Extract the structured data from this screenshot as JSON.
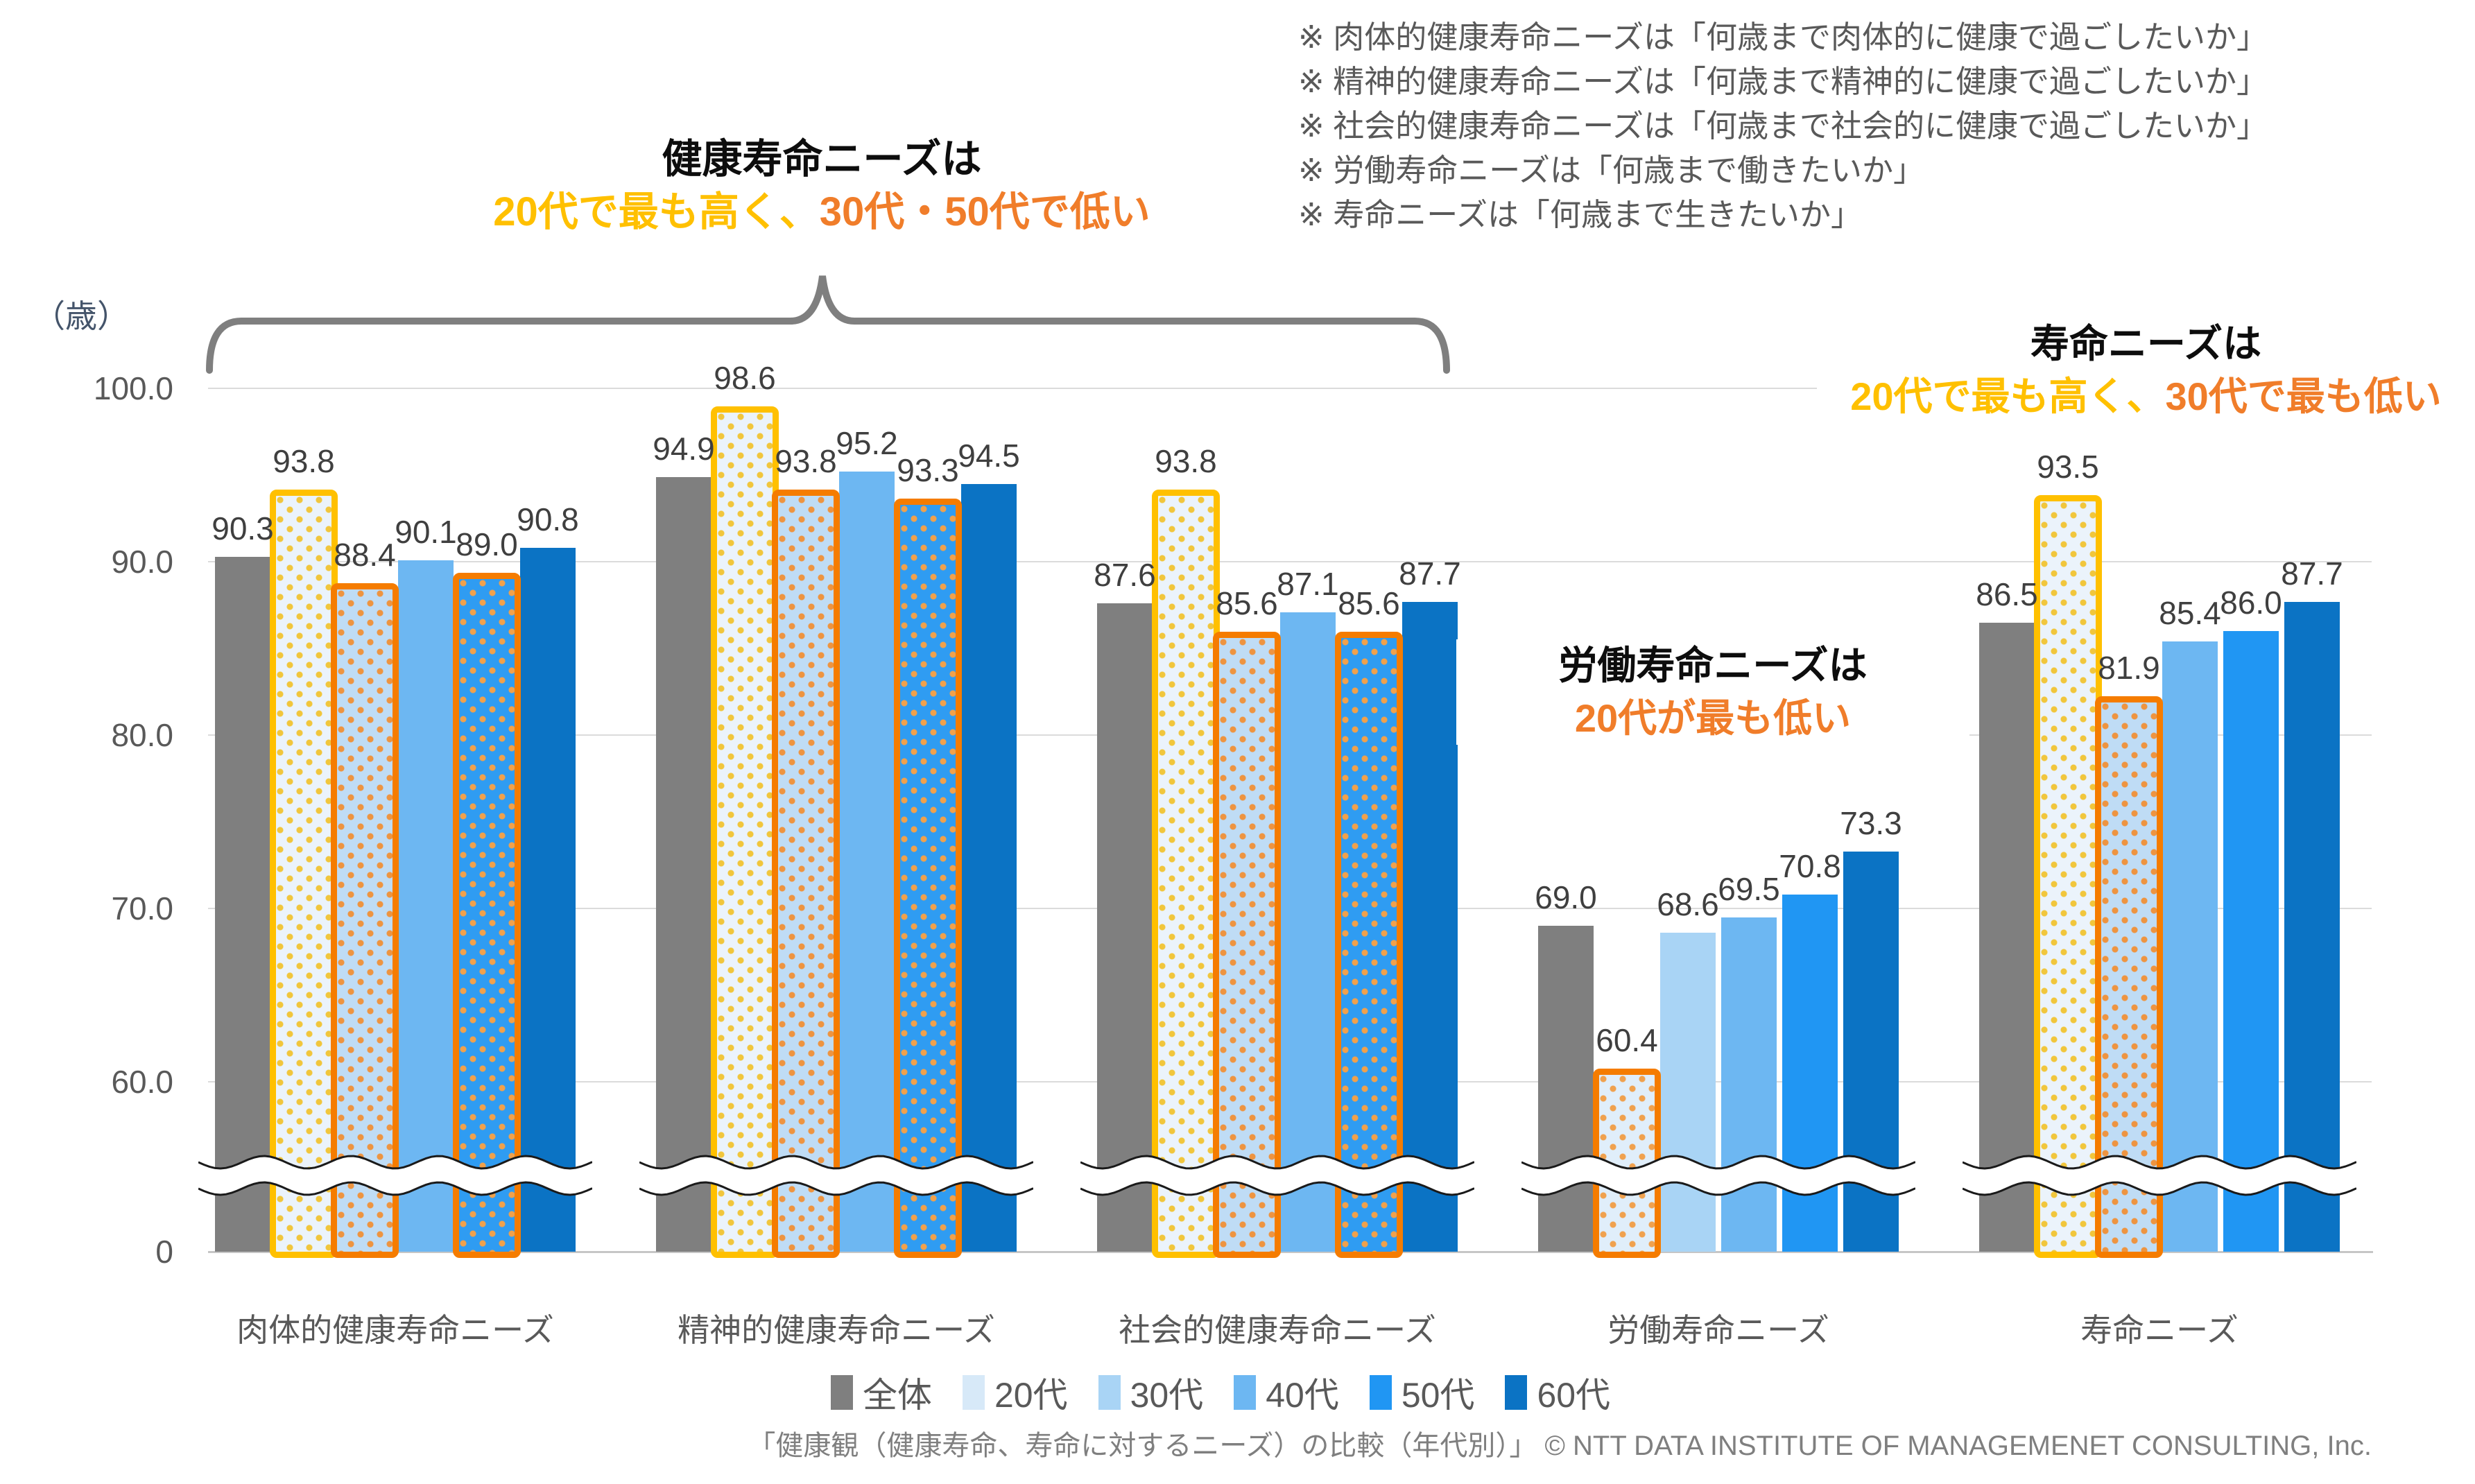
{
  "notes": {
    "items": [
      "※ 肉体的健康寿命ニーズは「何歳まで肉体的に健康で過ごしたいか」",
      "※ 精神的健康寿命ニーズは「何歳まで精神的に健康で過ごしたいか」",
      "※ 社会的健康寿命ニーズは「何歳まで社会的に健康で過ごしたいか」",
      "※ 労働寿命ニーズは「何歳まで働きたいか」",
      "※ 寿命ニーズは「何歳まで生きたいか」"
    ]
  },
  "annotations": {
    "main": {
      "line1": "健康寿命ニーズは",
      "line2_yellow": "20代で最も高く、",
      "line2_orange": "30代・50代で低い"
    },
    "labor": {
      "line1": "労働寿命ニーズは",
      "line2_orange": "20代が最も低い"
    },
    "lifespan": {
      "line1": "寿命ニーズは",
      "line2_yellow": "20代で最も高く、",
      "line2_orange": "30代で最も低い"
    }
  },
  "axis": {
    "unit_label": "（歳）"
  },
  "legend": {
    "items": [
      {
        "label": "全体",
        "color": "#7F7F7F"
      },
      {
        "label": "20代",
        "color": "#D7E9F8"
      },
      {
        "label": "30代",
        "color": "#A9D4F5"
      },
      {
        "label": "40代",
        "color": "#6DB7F2"
      },
      {
        "label": "50代",
        "color": "#2096F3"
      },
      {
        "label": "60代",
        "color": "#0B73C4"
      }
    ]
  },
  "caption": "「健康観（健康寿命、寿命に対するニーズ）の比較（年代別）」 © NTT DATA INSTITUTE OF MANAGEMENET CONSULTING, Inc.",
  "colors": {
    "accent_yellow": "#FFC000",
    "accent_orange_text": "#F07D2A",
    "highlight_border_yellow": "#FFC000",
    "highlight_border_orange": "#F57C00",
    "gridline": "#DBDBDB",
    "note_text": "#595959",
    "value_text": "#3F3F3F"
  },
  "chart_data": {
    "type": "bar",
    "title": "健康寿命ニーズは20代で最も高く、30代・50代で低い",
    "ylabel": "（歳）",
    "categories": [
      "肉体的健康寿命ニーズ",
      "精神的健康寿命ニーズ",
      "社会的健康寿命ニーズ",
      "労働寿命ニーズ",
      "寿命ニーズ"
    ],
    "series": [
      {
        "name": "全体",
        "color": "#7F7F7F",
        "values": [
          90.3,
          94.9,
          87.6,
          69.0,
          86.5
        ]
      },
      {
        "name": "20代",
        "color": "#D7E9F8",
        "values": [
          93.8,
          98.6,
          93.8,
          60.4,
          93.5
        ]
      },
      {
        "name": "30代",
        "color": "#A9D4F5",
        "values": [
          88.4,
          93.8,
          85.6,
          68.6,
          81.9
        ]
      },
      {
        "name": "40代",
        "color": "#6DB7F2",
        "values": [
          90.1,
          95.2,
          87.1,
          69.5,
          85.4
        ]
      },
      {
        "name": "50代",
        "color": "#2096F3",
        "values": [
          89.0,
          93.3,
          85.6,
          70.8,
          86.0
        ]
      },
      {
        "name": "60代",
        "color": "#0B73C4",
        "values": [
          90.8,
          94.5,
          87.7,
          73.3,
          87.7
        ]
      }
    ],
    "highlights": [
      {
        "group": 0,
        "series": 1,
        "style": "yellow"
      },
      {
        "group": 0,
        "series": 2,
        "style": "orange"
      },
      {
        "group": 0,
        "series": 4,
        "style": "orange"
      },
      {
        "group": 1,
        "series": 1,
        "style": "yellow"
      },
      {
        "group": 1,
        "series": 2,
        "style": "orange"
      },
      {
        "group": 1,
        "series": 4,
        "style": "orange"
      },
      {
        "group": 2,
        "series": 1,
        "style": "yellow"
      },
      {
        "group": 2,
        "series": 2,
        "style": "orange"
      },
      {
        "group": 2,
        "series": 4,
        "style": "orange"
      },
      {
        "group": 3,
        "series": 1,
        "style": "orange"
      },
      {
        "group": 4,
        "series": 1,
        "style": "yellow"
      },
      {
        "group": 4,
        "series": 2,
        "style": "orange"
      }
    ],
    "highlight_colors": {
      "yellow": "#FFC000",
      "orange": "#F57C00"
    },
    "yticks": [
      "100.0",
      "90.0",
      "80.0",
      "70.0",
      "60.0"
    ],
    "zero_tick": "0",
    "axis_break": true,
    "ylim": [
      0,
      100
    ],
    "grid": true,
    "legend_position": "bottom"
  }
}
